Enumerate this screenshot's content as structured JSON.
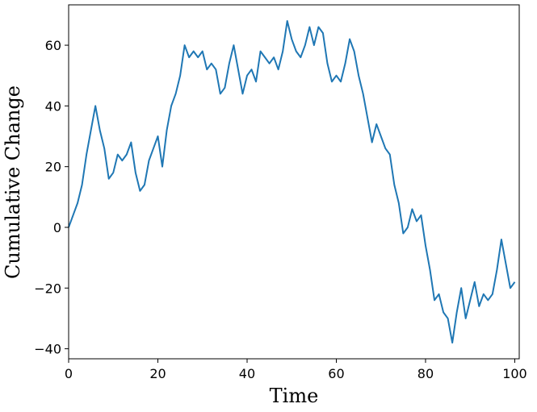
{
  "chart_data": {
    "type": "line",
    "x_label": "Time",
    "y_label": "Cumulative Change",
    "x": [
      0,
      1,
      2,
      3,
      4,
      5,
      6,
      7,
      8,
      9,
      10,
      11,
      12,
      13,
      14,
      15,
      16,
      17,
      18,
      19,
      20,
      21,
      22,
      23,
      24,
      25,
      26,
      27,
      28,
      29,
      30,
      31,
      32,
      33,
      34,
      35,
      36,
      37,
      38,
      39,
      40,
      41,
      42,
      43,
      44,
      45,
      46,
      47,
      48,
      49,
      50,
      51,
      52,
      53,
      54,
      55,
      56,
      57,
      58,
      59,
      60,
      61,
      62,
      63,
      64,
      65,
      66,
      67,
      68,
      69,
      70,
      71,
      72,
      73,
      74,
      75,
      76,
      77,
      78,
      79,
      80,
      81,
      82,
      83,
      84,
      85,
      86,
      87,
      88,
      89,
      90,
      91,
      92,
      93,
      94,
      95,
      96,
      97,
      98,
      99,
      100
    ],
    "series": [
      {
        "color": "#1f77b4",
        "values": [
          0,
          4,
          8,
          14,
          24,
          32,
          40,
          32,
          26,
          16,
          18,
          24,
          22,
          24,
          28,
          18,
          12,
          14,
          22,
          26,
          30,
          20,
          32,
          40,
          44,
          50,
          60,
          56,
          58,
          56,
          58,
          52,
          54,
          52,
          44,
          46,
          54,
          60,
          52,
          44,
          50,
          52,
          48,
          58,
          56,
          54,
          56,
          52,
          58,
          68,
          62,
          58,
          56,
          60,
          66,
          60,
          66,
          64,
          54,
          48,
          50,
          48,
          54,
          62,
          58,
          50,
          44,
          36,
          28,
          34,
          30,
          26,
          24,
          14,
          8,
          -2,
          0,
          6,
          2,
          4,
          -6,
          -14,
          -24,
          -22,
          -28,
          -30,
          -38,
          -28,
          -20,
          -30,
          -24,
          -18,
          -26,
          -22,
          -24,
          -22,
          -14,
          -4,
          -12,
          -20,
          -18
        ]
      }
    ],
    "xlim": [
      0,
      101
    ],
    "ylim": [
      -43.3,
      73.3
    ],
    "xticks": [
      0,
      20,
      40,
      60,
      80,
      100
    ],
    "yticks": [
      {
        "value": -40,
        "label": "−40"
      },
      {
        "value": -20,
        "label": "−20"
      },
      0,
      20,
      40,
      60
    ]
  }
}
